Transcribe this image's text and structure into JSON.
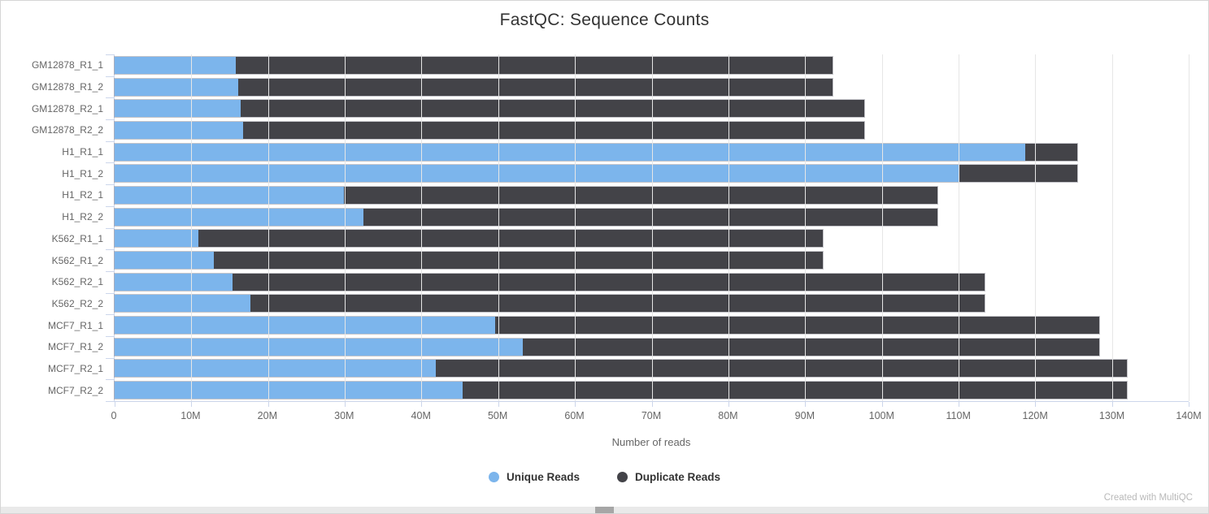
{
  "footer": {
    "credit": "Created with MultiQC"
  },
  "chart_data": {
    "type": "bar",
    "orientation": "horizontal",
    "stacked": true,
    "title": "FastQC: Sequence Counts",
    "xlabel": "Number of reads",
    "xlim_millions": [
      0,
      140
    ],
    "xticks": [
      "0",
      "10M",
      "20M",
      "30M",
      "40M",
      "50M",
      "60M",
      "70M",
      "80M",
      "90M",
      "100M",
      "110M",
      "120M",
      "130M",
      "140M"
    ],
    "grid": true,
    "legend_position": "bottom",
    "categories": [
      "GM12878_R1_1",
      "GM12878_R1_2",
      "GM12878_R2_1",
      "GM12878_R2_2",
      "H1_R1_1",
      "H1_R1_2",
      "H1_R2_1",
      "H1_R2_2",
      "K562_R1_1",
      "K562_R1_2",
      "K562_R2_1",
      "K562_R2_2",
      "MCF7_R1_1",
      "MCF7_R1_2",
      "MCF7_R2_1",
      "MCF7_R2_2"
    ],
    "series": [
      {
        "name": "Unique Reads",
        "color": "#7cb5ec",
        "values_millions": [
          15.8,
          16.1,
          16.4,
          16.7,
          118.7,
          110.0,
          29.9,
          32.4,
          10.9,
          12.9,
          15.4,
          17.7,
          49.6,
          53.2,
          41.9,
          45.4
        ]
      },
      {
        "name": "Duplicate Reads",
        "color": "#434348",
        "values_millions": [
          77.8,
          77.5,
          81.3,
          81.0,
          6.8,
          15.5,
          77.4,
          74.9,
          81.4,
          79.4,
          98.0,
          95.7,
          78.7,
          75.1,
          90.0,
          86.5
        ]
      }
    ],
    "totals_millions": [
      93.6,
      93.6,
      97.7,
      97.7,
      125.5,
      125.5,
      107.3,
      107.3,
      92.3,
      92.3,
      113.4,
      113.4,
      128.3,
      128.3,
      131.9,
      131.9
    ]
  }
}
